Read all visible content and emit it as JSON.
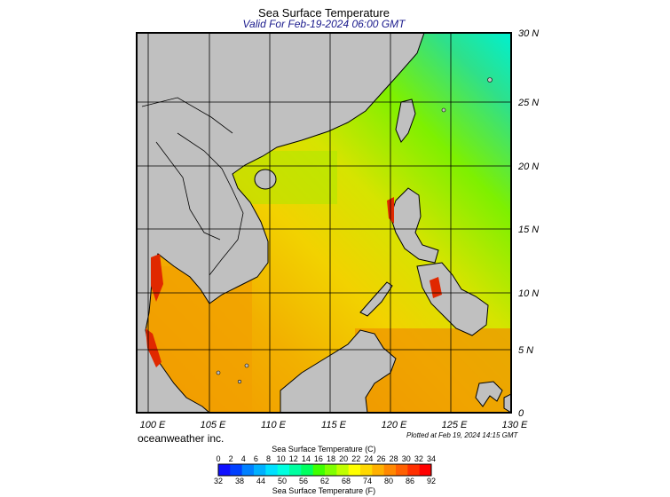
{
  "title": "Sea Surface Temperature",
  "subtitle": "Valid For Feb-19-2024 06:00 GMT",
  "credit": "oceanweather inc.",
  "plotted": "Plotted at Feb 19, 2024 14:15 GMT",
  "map": {
    "lon_range": [
      99,
      130
    ],
    "lat_range": [
      0,
      30
    ],
    "x_ticks": [
      "100 E",
      "105 E",
      "110 E",
      "115 E",
      "120 E",
      "125 E",
      "130 E"
    ],
    "y_ticks": [
      "0",
      "5 N",
      "10 N",
      "15 N",
      "20 N",
      "25 N",
      "30 N"
    ],
    "grid": true,
    "colors": {
      "land": "#c0c0c0",
      "coast": "#000000",
      "cool_water": "#2fe08a",
      "mid_water": "#7ef000",
      "warm_water": "#f2d200",
      "hot_water": "#f29200",
      "red_shallows": "#e02800"
    }
  },
  "legend": {
    "title_c": "Sea Surface Temperature (C)",
    "title_f": "Sea Surface Temperature (F)",
    "celsius": [
      "0",
      "2",
      "4",
      "6",
      "8",
      "10",
      "12",
      "14",
      "16",
      "18",
      "20",
      "22",
      "24",
      "26",
      "28",
      "30",
      "32",
      "34"
    ],
    "fahrenheit": [
      "32",
      "38",
      "44",
      "50",
      "56",
      "62",
      "68",
      "74",
      "80",
      "86",
      "92"
    ],
    "colors": [
      "#1010ff",
      "#0040ff",
      "#0080ff",
      "#00b0ff",
      "#00e0ff",
      "#00ffe0",
      "#00ffa0",
      "#00ff60",
      "#40ff00",
      "#80ff00",
      "#c0ff00",
      "#ffff00",
      "#ffd800",
      "#ffb000",
      "#ff8800",
      "#ff6000",
      "#ff3000",
      "#ff0000"
    ]
  }
}
